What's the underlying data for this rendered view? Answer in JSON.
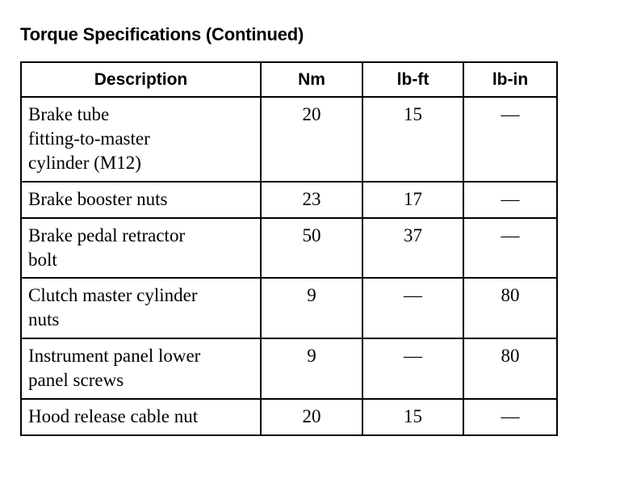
{
  "title": "Torque Specifications (Continued)",
  "table": {
    "headers": [
      "Description",
      "Nm",
      "lb-ft",
      "lb-in"
    ],
    "rows": [
      {
        "description": "Brake tube\nfitting-to-master\ncylinder (M12)",
        "nm": "20",
        "lbft": "15",
        "lbin": "—"
      },
      {
        "description": "Brake booster nuts",
        "nm": "23",
        "lbft": "17",
        "lbin": "—"
      },
      {
        "description": "Brake pedal retractor\nbolt",
        "nm": "50",
        "lbft": "37",
        "lbin": "—"
      },
      {
        "description": "Clutch master cylinder\nnuts",
        "nm": "9",
        "lbft": "—",
        "lbin": "80"
      },
      {
        "description": "Instrument panel lower\npanel screws",
        "nm": "9",
        "lbft": "—",
        "lbin": "80"
      },
      {
        "description": "Hood release cable nut",
        "nm": "20",
        "lbft": "15",
        "lbin": "—"
      }
    ]
  }
}
